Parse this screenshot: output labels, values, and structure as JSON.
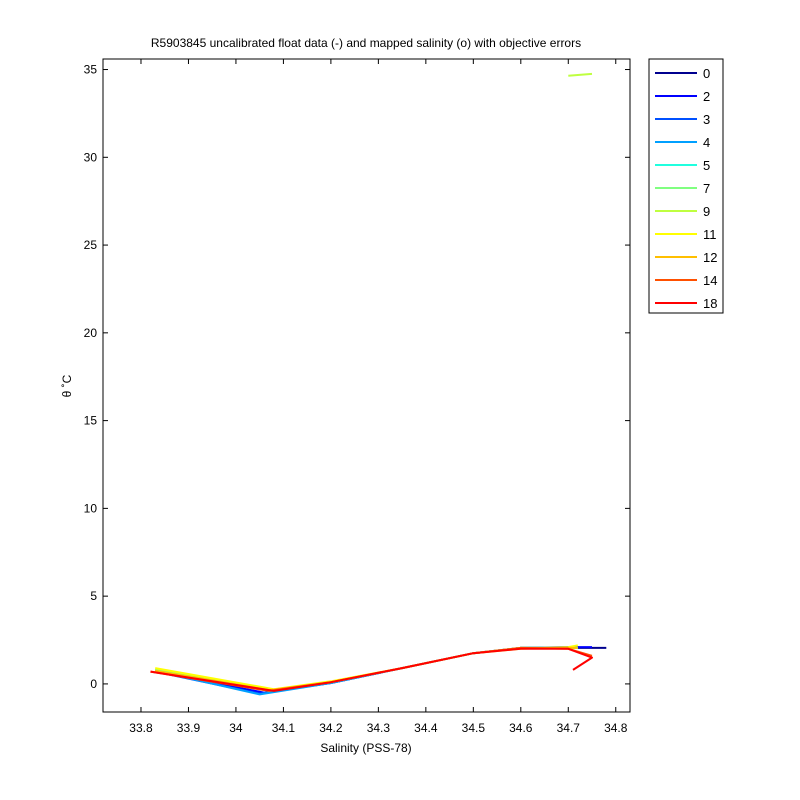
{
  "chart_data": {
    "type": "line",
    "title": "R5903845 uncalibrated float data (-) and mapped salinity (o) with objective errors",
    "xlabel": "Salinity (PSS-78)",
    "ylabel": "θ ˚C",
    "xlim": [
      33.72,
      34.83
    ],
    "ylim": [
      -1.6,
      35.6
    ],
    "xticks": [
      "33.8",
      "33.9",
      "34",
      "34.1",
      "34.2",
      "34.3",
      "34.4",
      "34.5",
      "34.6",
      "34.7",
      "34.8"
    ],
    "yticks": [
      "0",
      "5",
      "10",
      "15",
      "20",
      "25",
      "30",
      "35"
    ],
    "grid": false,
    "legend_position": "outside-right",
    "series": [
      {
        "name": "0",
        "color": "#00008f",
        "x": [
          33.83,
          34.07,
          34.2,
          34.35,
          34.5,
          34.6,
          34.7,
          34.78
        ],
        "y": [
          0.75,
          -0.35,
          0.1,
          0.9,
          1.75,
          2.05,
          2.05,
          2.05
        ]
      },
      {
        "name": "2",
        "color": "#0000ff",
        "x": [
          33.83,
          34.06,
          34.2,
          34.35,
          34.5,
          34.6,
          34.7,
          34.75
        ],
        "y": [
          0.7,
          -0.5,
          0.05,
          0.9,
          1.75,
          2.05,
          2.1,
          2.1
        ]
      },
      {
        "name": "3",
        "color": "#0050ff",
        "x": [
          33.83,
          34.05,
          34.2,
          34.35,
          34.5,
          34.6,
          34.72
        ],
        "y": [
          0.7,
          -0.55,
          0.05,
          0.9,
          1.75,
          2.05,
          2.1
        ]
      },
      {
        "name": "4",
        "color": "#00a0ff",
        "x": [
          33.83,
          34.05,
          34.2,
          34.35,
          34.5,
          34.6,
          34.72
        ],
        "y": [
          0.75,
          -0.6,
          0.05,
          0.9,
          1.75,
          2.05,
          2.05
        ]
      },
      {
        "name": "5",
        "color": "#20ffdf",
        "x": [
          33.83,
          34.07,
          34.2,
          34.35,
          34.5,
          34.6,
          34.72
        ],
        "y": [
          0.8,
          -0.4,
          0.1,
          0.9,
          1.75,
          2.05,
          2.05
        ]
      },
      {
        "name": "7",
        "color": "#80ff80",
        "x": [
          33.83,
          34.07,
          34.2,
          34.35,
          34.5,
          34.6,
          34.72
        ],
        "y": [
          0.8,
          -0.35,
          0.1,
          0.9,
          1.75,
          2.05,
          2.05
        ]
      },
      {
        "name": "9",
        "color": "#bfff40",
        "x": [
          34.7,
          34.75
        ],
        "y": [
          34.65,
          34.75
        ]
      },
      {
        "name": "11",
        "color": "#ffff00",
        "x": [
          33.83,
          34.08,
          34.2,
          34.35,
          34.5,
          34.6,
          34.7,
          34.72
        ],
        "y": [
          0.9,
          -0.3,
          0.15,
          0.9,
          1.75,
          2.0,
          2.1,
          2.2
        ]
      },
      {
        "name": "12",
        "color": "#ffbf00",
        "x": [
          33.83,
          34.07,
          34.2,
          34.35,
          34.5,
          34.6,
          34.72
        ],
        "y": [
          0.75,
          -0.35,
          0.1,
          0.9,
          1.75,
          2.05,
          2.05
        ]
      },
      {
        "name": "14",
        "color": "#ff5000",
        "x": [
          33.82,
          34.07,
          34.2,
          34.35,
          34.5,
          34.6,
          34.7,
          34.75
        ],
        "y": [
          0.7,
          -0.4,
          0.1,
          0.9,
          1.75,
          2.05,
          2.0,
          1.6
        ]
      },
      {
        "name": "18",
        "color": "#ff0000",
        "x": [
          33.82,
          34.08,
          34.2,
          34.35,
          34.5,
          34.6,
          34.7,
          34.75,
          34.71
        ],
        "y": [
          0.7,
          -0.4,
          0.1,
          0.9,
          1.75,
          2.0,
          2.0,
          1.5,
          0.8
        ]
      }
    ]
  }
}
